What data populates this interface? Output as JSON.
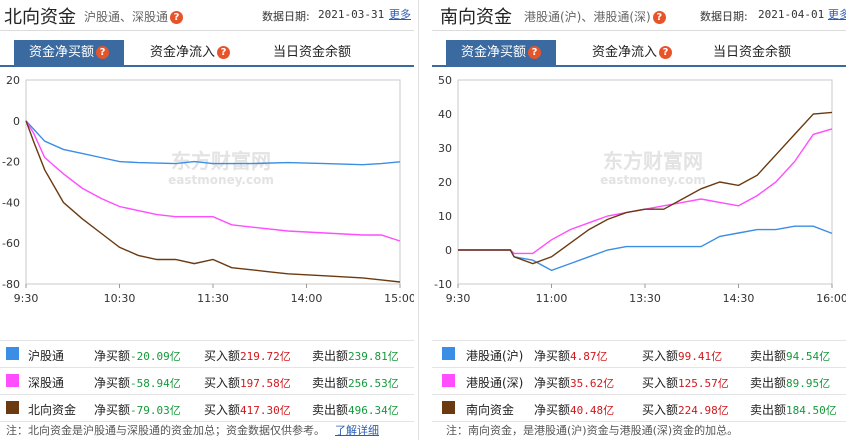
{
  "north": {
    "title": "北向资金",
    "subtitle": "沪股通、深股通",
    "date_label": "数据日期:",
    "date_value": "2021-03-31",
    "more_label": "更多",
    "tabs": [
      {
        "label": "资金净买额",
        "active": true
      },
      {
        "label": "资金净流入",
        "active": false
      },
      {
        "label": "当日资金余额",
        "active": false
      }
    ],
    "chart_data": {
      "type": "line",
      "x_ticks": [
        "9:30",
        "10:30",
        "11:30",
        "14:00",
        "15:00"
      ],
      "yticks": [
        20,
        0,
        -20,
        -40,
        -60,
        -80
      ],
      "ylim": [
        -80,
        20
      ],
      "watermark": "东方财富网",
      "watermark_en": "eastmoney.com",
      "series": [
        {
          "name": "沪股通",
          "color": "#3a8ee6",
          "points": [
            [
              0,
              0
            ],
            [
              0.02,
              -4
            ],
            [
              0.05,
              -10
            ],
            [
              0.1,
              -14
            ],
            [
              0.15,
              -16
            ],
            [
              0.2,
              -18
            ],
            [
              0.25,
              -20
            ],
            [
              0.3,
              -20.5
            ],
            [
              0.4,
              -21
            ],
            [
              0.45,
              -20
            ],
            [
              0.5,
              -21
            ],
            [
              0.55,
              -21
            ],
            [
              0.6,
              -21
            ],
            [
              0.7,
              -20.5
            ],
            [
              0.8,
              -21
            ],
            [
              0.9,
              -21.5
            ],
            [
              0.95,
              -21
            ],
            [
              1,
              -20.09
            ]
          ]
        },
        {
          "name": "深股通",
          "color": "#ff4dff",
          "points": [
            [
              0,
              0
            ],
            [
              0.02,
              -6
            ],
            [
              0.05,
              -18
            ],
            [
              0.1,
              -26
            ],
            [
              0.15,
              -33
            ],
            [
              0.2,
              -38
            ],
            [
              0.25,
              -42
            ],
            [
              0.3,
              -44
            ],
            [
              0.35,
              -46
            ],
            [
              0.4,
              -47
            ],
            [
              0.45,
              -47
            ],
            [
              0.5,
              -47
            ],
            [
              0.55,
              -51
            ],
            [
              0.6,
              -52
            ],
            [
              0.7,
              -54
            ],
            [
              0.8,
              -55
            ],
            [
              0.9,
              -56
            ],
            [
              0.95,
              -56
            ],
            [
              1,
              -58.94
            ]
          ]
        },
        {
          "name": "北向资金",
          "color": "#6b3a10",
          "points": [
            [
              0,
              0
            ],
            [
              0.02,
              -10
            ],
            [
              0.05,
              -24
            ],
            [
              0.1,
              -40
            ],
            [
              0.15,
              -48
            ],
            [
              0.2,
              -55
            ],
            [
              0.25,
              -62
            ],
            [
              0.3,
              -66
            ],
            [
              0.35,
              -68
            ],
            [
              0.4,
              -68
            ],
            [
              0.45,
              -70
            ],
            [
              0.5,
              -68
            ],
            [
              0.55,
              -72
            ],
            [
              0.6,
              -73
            ],
            [
              0.65,
              -74
            ],
            [
              0.7,
              -75
            ],
            [
              0.8,
              -76
            ],
            [
              0.9,
              -77
            ],
            [
              0.95,
              -78
            ],
            [
              1,
              -79.03
            ]
          ]
        }
      ]
    },
    "legend": [
      {
        "name": "沪股通",
        "color": "#3a8ee6",
        "net_label": "净买额",
        "net": "-20.09亿",
        "buy_label": "买入额",
        "buy": "219.72亿",
        "sell_label": "卖出额",
        "sell": "239.81亿"
      },
      {
        "name": "深股通",
        "color": "#ff4dff",
        "net_label": "净买额",
        "net": "-58.94亿",
        "buy_label": "买入额",
        "buy": "197.58亿",
        "sell_label": "卖出额",
        "sell": "256.53亿"
      },
      {
        "name": "北向资金",
        "color": "#6b3a10",
        "net_label": "净买额",
        "net": "-79.03亿",
        "buy_label": "买入额",
        "buy": "417.30亿",
        "sell_label": "卖出额",
        "sell": "496.34亿"
      }
    ],
    "note": "注：北向资金是沪股通与深股通的资金加总；资金数据仅供参考。",
    "note_link": "了解详细"
  },
  "south": {
    "title": "南向资金",
    "subtitle": "港股通(沪)、港股通(深)",
    "date_label": "数据日期:",
    "date_value": "2021-04-01",
    "more_label": "更多",
    "tabs": [
      {
        "label": "资金净买额",
        "active": true
      },
      {
        "label": "资金净流入",
        "active": false
      },
      {
        "label": "当日资金余额",
        "active": false
      }
    ],
    "chart_data": {
      "type": "line",
      "x_ticks": [
        "9:30",
        "11:00",
        "13:30",
        "14:30",
        "16:00"
      ],
      "yticks": [
        50,
        40,
        30,
        20,
        10,
        0,
        -10
      ],
      "ylim": [
        -10,
        50
      ],
      "watermark": "东方财富网",
      "watermark_en": "eastmoney.com",
      "series": [
        {
          "name": "港股通(沪)",
          "color": "#3a8ee6",
          "points": [
            [
              0,
              0
            ],
            [
              0.14,
              0
            ],
            [
              0.15,
              -2
            ],
            [
              0.2,
              -3
            ],
            [
              0.25,
              -6
            ],
            [
              0.3,
              -4
            ],
            [
              0.35,
              -2
            ],
            [
              0.4,
              0
            ],
            [
              0.45,
              1
            ],
            [
              0.5,
              1
            ],
            [
              0.55,
              1
            ],
            [
              0.6,
              1
            ],
            [
              0.65,
              1
            ],
            [
              0.7,
              4
            ],
            [
              0.75,
              5
            ],
            [
              0.8,
              6
            ],
            [
              0.85,
              6
            ],
            [
              0.9,
              7
            ],
            [
              0.95,
              7
            ],
            [
              1,
              4.87
            ]
          ]
        },
        {
          "name": "港股通(深)",
          "color": "#ff4dff",
          "points": [
            [
              0,
              0
            ],
            [
              0.14,
              0
            ],
            [
              0.15,
              -1
            ],
            [
              0.2,
              -1
            ],
            [
              0.25,
              3
            ],
            [
              0.3,
              6
            ],
            [
              0.35,
              8
            ],
            [
              0.4,
              10
            ],
            [
              0.45,
              11
            ],
            [
              0.5,
              12
            ],
            [
              0.55,
              13
            ],
            [
              0.6,
              14
            ],
            [
              0.65,
              15
            ],
            [
              0.7,
              14
            ],
            [
              0.75,
              13
            ],
            [
              0.8,
              16
            ],
            [
              0.85,
              20
            ],
            [
              0.9,
              26
            ],
            [
              0.95,
              34
            ],
            [
              1,
              35.62
            ]
          ]
        },
        {
          "name": "南向资金",
          "color": "#6b3a10",
          "points": [
            [
              0,
              0
            ],
            [
              0.14,
              0
            ],
            [
              0.15,
              -2
            ],
            [
              0.2,
              -4
            ],
            [
              0.25,
              -2
            ],
            [
              0.3,
              2
            ],
            [
              0.35,
              6
            ],
            [
              0.4,
              9
            ],
            [
              0.45,
              11
            ],
            [
              0.5,
              12
            ],
            [
              0.55,
              12
            ],
            [
              0.6,
              15
            ],
            [
              0.65,
              18
            ],
            [
              0.7,
              20
            ],
            [
              0.75,
              19
            ],
            [
              0.8,
              22
            ],
            [
              0.85,
              28
            ],
            [
              0.9,
              34
            ],
            [
              0.95,
              40
            ],
            [
              1,
              40.48
            ]
          ]
        }
      ]
    },
    "legend": [
      {
        "name": "港股通(沪)",
        "color": "#3a8ee6",
        "net_label": "净买额",
        "net": "4.87亿",
        "buy_label": "买入额",
        "buy": "99.41亿",
        "sell_label": "卖出额",
        "sell": "94.54亿"
      },
      {
        "name": "港股通(深)",
        "color": "#ff4dff",
        "net_label": "净买额",
        "net": "35.62亿",
        "buy_label": "买入额",
        "buy": "125.57亿",
        "sell_label": "卖出额",
        "sell": "89.95亿"
      },
      {
        "name": "南向资金",
        "color": "#6b3a10",
        "net_label": "净买额",
        "net": "40.48亿",
        "buy_label": "买入额",
        "buy": "224.98亿",
        "sell_label": "卖出额",
        "sell": "184.50亿"
      }
    ],
    "note": "注：南向资金，是港股通(沪)资金与港股通(深)资金的加总。",
    "note_link": ""
  }
}
